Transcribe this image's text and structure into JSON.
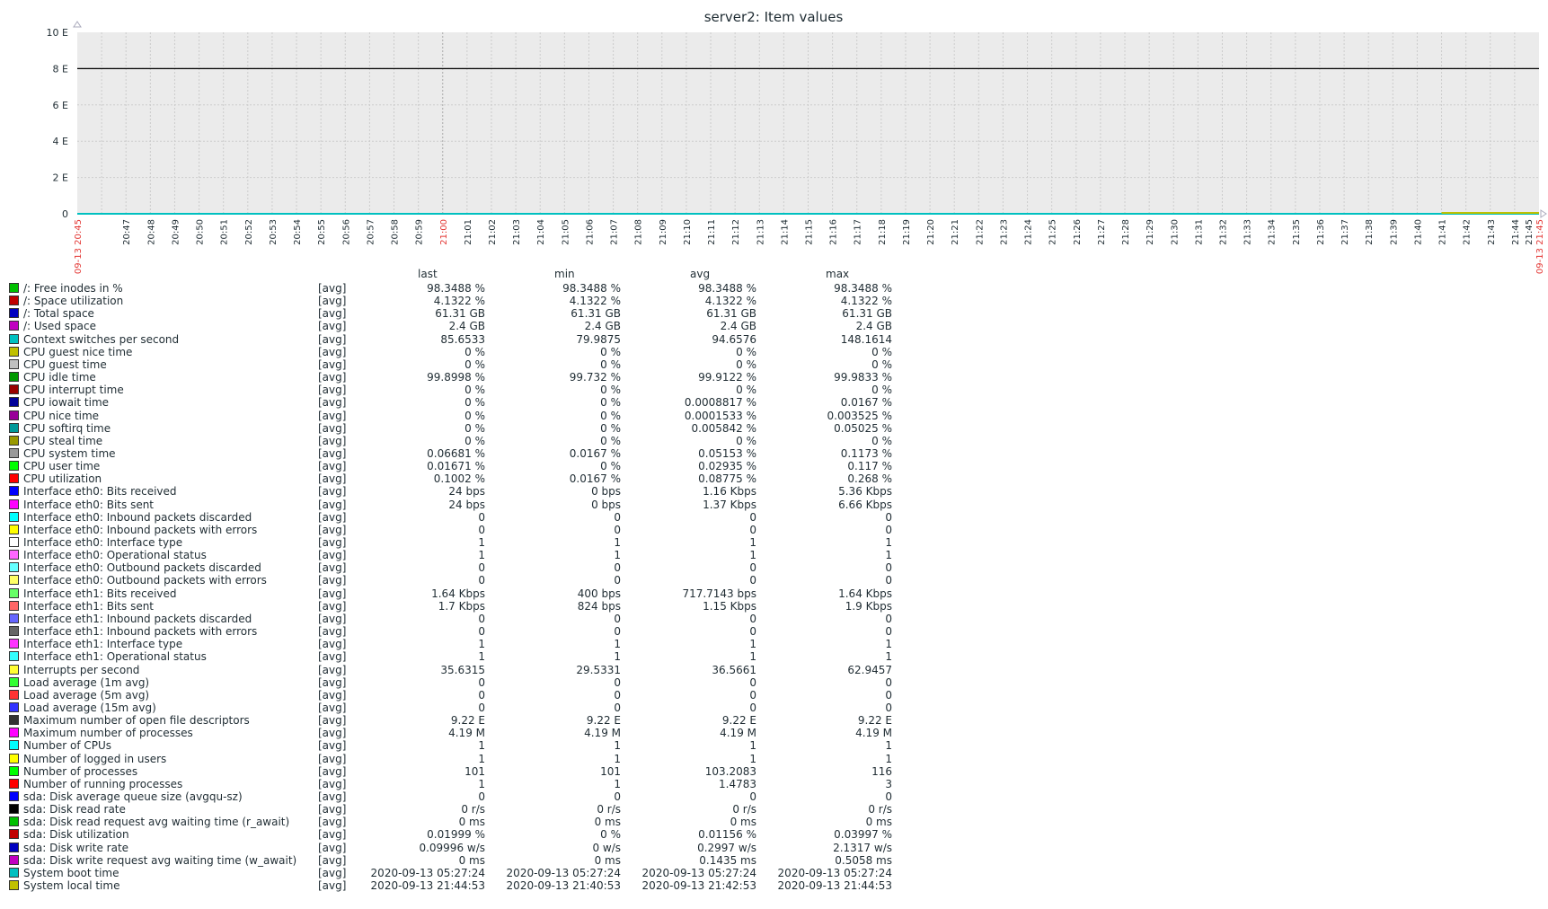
{
  "chart_data": {
    "type": "line",
    "title": "server2: Item values",
    "y_unit": "E",
    "y_ticks": [
      "0",
      "2 E",
      "4 E",
      "6 E",
      "8 E",
      "10 E"
    ],
    "ylim": [
      0,
      10
    ],
    "x_start_label": "09-13 20:45",
    "x_end_label": "09-13 21:45",
    "x_tick_labels": [
      "20:47",
      "20:48",
      "20:49",
      "20:50",
      "20:51",
      "20:52",
      "20:53",
      "20:54",
      "20:55",
      "20:56",
      "20:57",
      "20:58",
      "20:59",
      "21:00",
      "21:01",
      "21:02",
      "21:03",
      "21:04",
      "21:05",
      "21:06",
      "21:07",
      "21:08",
      "21:09",
      "21:10",
      "21:11",
      "21:12",
      "21:13",
      "21:14",
      "21:15",
      "21:16",
      "21:17",
      "21:18",
      "21:19",
      "21:20",
      "21:21",
      "21:22",
      "21:23",
      "21:24",
      "21:25",
      "21:26",
      "21:27",
      "21:28",
      "21:29",
      "21:30",
      "21:31",
      "21:32",
      "21:33",
      "21:34",
      "21:35",
      "21:36",
      "21:37",
      "21:38",
      "21:39",
      "21:40",
      "21:41",
      "21:42",
      "21:43",
      "21:44",
      "21:45"
    ],
    "highlight_ticks": [
      "21:00"
    ],
    "flat_line_value": 9.22,
    "grid": true,
    "colors": {
      "plot_bg": "#ebebeb",
      "grid": "#cccccc",
      "axis_text": "#1f2c33",
      "highlight": "#e33734",
      "baseline": "#00c0c0",
      "flat_line": "#000000"
    }
  },
  "legend": {
    "headers": [
      "last",
      "min",
      "avg",
      "max"
    ],
    "items": [
      {
        "color": "#00c000",
        "name": "/: Free inodes in %",
        "fn": "[avg]",
        "last": "98.3488 %",
        "min": "98.3488 %",
        "avg": "98.3488 %",
        "max": "98.3488 %"
      },
      {
        "color": "#c00000",
        "name": "/: Space utilization",
        "fn": "[avg]",
        "last": "4.1322 %",
        "min": "4.1322 %",
        "avg": "4.1322 %",
        "max": "4.1322 %"
      },
      {
        "color": "#0000c0",
        "name": "/: Total space",
        "fn": "[avg]",
        "last": "61.31 GB",
        "min": "61.31 GB",
        "avg": "61.31 GB",
        "max": "61.31 GB"
      },
      {
        "color": "#c000c0",
        "name": "/: Used space",
        "fn": "[avg]",
        "last": "2.4 GB",
        "min": "2.4 GB",
        "avg": "2.4 GB",
        "max": "2.4 GB"
      },
      {
        "color": "#00c0c0",
        "name": "Context switches per second",
        "fn": "[avg]",
        "last": "85.6533",
        "min": "79.9875",
        "avg": "94.6576",
        "max": "148.1614"
      },
      {
        "color": "#c0c000",
        "name": "CPU guest nice time",
        "fn": "[avg]",
        "last": "0 %",
        "min": "0 %",
        "avg": "0 %",
        "max": "0 %"
      },
      {
        "color": "#c0c0c0",
        "name": "CPU guest time",
        "fn": "[avg]",
        "last": "0 %",
        "min": "0 %",
        "avg": "0 %",
        "max": "0 %"
      },
      {
        "color": "#009900",
        "name": "CPU idle time",
        "fn": "[avg]",
        "last": "99.8998 %",
        "min": "99.732 %",
        "avg": "99.9122 %",
        "max": "99.9833 %"
      },
      {
        "color": "#990000",
        "name": "CPU interrupt time",
        "fn": "[avg]",
        "last": "0 %",
        "min": "0 %",
        "avg": "0 %",
        "max": "0 %"
      },
      {
        "color": "#000099",
        "name": "CPU iowait time",
        "fn": "[avg]",
        "last": "0 %",
        "min": "0 %",
        "avg": "0.0008817 %",
        "max": "0.0167 %"
      },
      {
        "color": "#990099",
        "name": "CPU nice time",
        "fn": "[avg]",
        "last": "0 %",
        "min": "0 %",
        "avg": "0.0001533 %",
        "max": "0.003525 %"
      },
      {
        "color": "#009999",
        "name": "CPU softirq time",
        "fn": "[avg]",
        "last": "0 %",
        "min": "0 %",
        "avg": "0.005842 %",
        "max": "0.05025 %"
      },
      {
        "color": "#999900",
        "name": "CPU steal time",
        "fn": "[avg]",
        "last": "0 %",
        "min": "0 %",
        "avg": "0 %",
        "max": "0 %"
      },
      {
        "color": "#999999",
        "name": "CPU system time",
        "fn": "[avg]",
        "last": "0.06681 %",
        "min": "0.0167 %",
        "avg": "0.05153 %",
        "max": "0.1173 %"
      },
      {
        "color": "#00ff00",
        "name": "CPU user time",
        "fn": "[avg]",
        "last": "0.01671 %",
        "min": "0 %",
        "avg": "0.02935 %",
        "max": "0.117 %"
      },
      {
        "color": "#ff0000",
        "name": "CPU utilization",
        "fn": "[avg]",
        "last": "0.1002 %",
        "min": "0.0167 %",
        "avg": "0.08775 %",
        "max": "0.268 %"
      },
      {
        "color": "#0000ff",
        "name": "Interface eth0: Bits received",
        "fn": "[avg]",
        "last": "24 bps",
        "min": "0 bps",
        "avg": "1.16 Kbps",
        "max": "5.36 Kbps"
      },
      {
        "color": "#ff00ff",
        "name": "Interface eth0: Bits sent",
        "fn": "[avg]",
        "last": "24 bps",
        "min": "0 bps",
        "avg": "1.37 Kbps",
        "max": "6.66 Kbps"
      },
      {
        "color": "#00ffff",
        "name": "Interface eth0: Inbound packets discarded",
        "fn": "[avg]",
        "last": "0",
        "min": "0",
        "avg": "0",
        "max": "0"
      },
      {
        "color": "#ffff00",
        "name": "Interface eth0: Inbound packets with errors",
        "fn": "[avg]",
        "last": "0",
        "min": "0",
        "avg": "0",
        "max": "0"
      },
      {
        "color": "#ffffff",
        "name": "Interface eth0: Interface type",
        "fn": "[avg]",
        "last": "1",
        "min": "1",
        "avg": "1",
        "max": "1"
      },
      {
        "color": "#ff66ff",
        "name": "Interface eth0: Operational status",
        "fn": "[avg]",
        "last": "1",
        "min": "1",
        "avg": "1",
        "max": "1"
      },
      {
        "color": "#66ffff",
        "name": "Interface eth0: Outbound packets discarded",
        "fn": "[avg]",
        "last": "0",
        "min": "0",
        "avg": "0",
        "max": "0"
      },
      {
        "color": "#ffff66",
        "name": "Interface eth0: Outbound packets with errors",
        "fn": "[avg]",
        "last": "0",
        "min": "0",
        "avg": "0",
        "max": "0"
      },
      {
        "color": "#66ff66",
        "name": "Interface eth1: Bits received",
        "fn": "[avg]",
        "last": "1.64 Kbps",
        "min": "400 bps",
        "avg": "717.7143 bps",
        "max": "1.64 Kbps"
      },
      {
        "color": "#ff6666",
        "name": "Interface eth1: Bits sent",
        "fn": "[avg]",
        "last": "1.7 Kbps",
        "min": "824 bps",
        "avg": "1.15 Kbps",
        "max": "1.9 Kbps"
      },
      {
        "color": "#6666ff",
        "name": "Interface eth1: Inbound packets discarded",
        "fn": "[avg]",
        "last": "0",
        "min": "0",
        "avg": "0",
        "max": "0"
      },
      {
        "color": "#666666",
        "name": "Interface eth1: Inbound packets with errors",
        "fn": "[avg]",
        "last": "0",
        "min": "0",
        "avg": "0",
        "max": "0"
      },
      {
        "color": "#ff33ff",
        "name": "Interface eth1: Interface type",
        "fn": "[avg]",
        "last": "1",
        "min": "1",
        "avg": "1",
        "max": "1"
      },
      {
        "color": "#33ffff",
        "name": "Interface eth1: Operational status",
        "fn": "[avg]",
        "last": "1",
        "min": "1",
        "avg": "1",
        "max": "1"
      },
      {
        "color": "#ffff33",
        "name": "Interrupts per second",
        "fn": "[avg]",
        "last": "35.6315",
        "min": "29.5331",
        "avg": "36.5661",
        "max": "62.9457"
      },
      {
        "color": "#33ff33",
        "name": "Load average (1m avg)",
        "fn": "[avg]",
        "last": "0",
        "min": "0",
        "avg": "0",
        "max": "0"
      },
      {
        "color": "#ff3333",
        "name": "Load average (5m avg)",
        "fn": "[avg]",
        "last": "0",
        "min": "0",
        "avg": "0",
        "max": "0"
      },
      {
        "color": "#3333ff",
        "name": "Load average (15m avg)",
        "fn": "[avg]",
        "last": "0",
        "min": "0",
        "avg": "0",
        "max": "0"
      },
      {
        "color": "#333333",
        "name": "Maximum number of open file descriptors",
        "fn": "[avg]",
        "last": "9.22 E",
        "min": "9.22 E",
        "avg": "9.22 E",
        "max": "9.22 E"
      },
      {
        "color": "#ff00ff",
        "name": "Maximum number of processes",
        "fn": "[avg]",
        "last": "4.19 M",
        "min": "4.19 M",
        "avg": "4.19 M",
        "max": "4.19 M"
      },
      {
        "color": "#00ffff",
        "name": "Number of CPUs",
        "fn": "[avg]",
        "last": "1",
        "min": "1",
        "avg": "1",
        "max": "1"
      },
      {
        "color": "#ffff00",
        "name": "Number of logged in users",
        "fn": "[avg]",
        "last": "1",
        "min": "1",
        "avg": "1",
        "max": "1"
      },
      {
        "color": "#00ff00",
        "name": "Number of processes",
        "fn": "[avg]",
        "last": "101",
        "min": "101",
        "avg": "103.2083",
        "max": "116"
      },
      {
        "color": "#ff0000",
        "name": "Number of running processes",
        "fn": "[avg]",
        "last": "1",
        "min": "1",
        "avg": "1.4783",
        "max": "3"
      },
      {
        "color": "#0000ff",
        "name": "sda: Disk average queue size (avgqu-sz)",
        "fn": "[avg]",
        "last": "0",
        "min": "0",
        "avg": "0",
        "max": "0"
      },
      {
        "color": "#000000",
        "name": "sda: Disk read rate",
        "fn": "[avg]",
        "last": "0 r/s",
        "min": "0 r/s",
        "avg": "0 r/s",
        "max": "0 r/s"
      },
      {
        "color": "#00c000",
        "name": "sda: Disk read request avg waiting time (r_await)",
        "fn": "[avg]",
        "last": "0 ms",
        "min": "0 ms",
        "avg": "0 ms",
        "max": "0 ms"
      },
      {
        "color": "#c00000",
        "name": "sda: Disk utilization",
        "fn": "[avg]",
        "last": "0.01999 %",
        "min": "0 %",
        "avg": "0.01156 %",
        "max": "0.03997 %"
      },
      {
        "color": "#0000c0",
        "name": "sda: Disk write rate",
        "fn": "[avg]",
        "last": "0.09996 w/s",
        "min": "0 w/s",
        "avg": "0.2997 w/s",
        "max": "2.1317 w/s"
      },
      {
        "color": "#c000c0",
        "name": "sda: Disk write request avg waiting time (w_await)",
        "fn": "[avg]",
        "last": "0 ms",
        "min": "0 ms",
        "avg": "0.1435 ms",
        "max": "0.5058 ms"
      },
      {
        "color": "#00c0c0",
        "name": "System boot time",
        "fn": "[avg]",
        "last": "2020-09-13 05:27:24",
        "min": "2020-09-13 05:27:24",
        "avg": "2020-09-13 05:27:24",
        "max": "2020-09-13 05:27:24"
      },
      {
        "color": "#c0c000",
        "name": "System local time",
        "fn": "[avg]",
        "last": "2020-09-13 21:44:53",
        "min": "2020-09-13 21:40:53",
        "avg": "2020-09-13 21:42:53",
        "max": "2020-09-13 21:44:53"
      }
    ]
  }
}
